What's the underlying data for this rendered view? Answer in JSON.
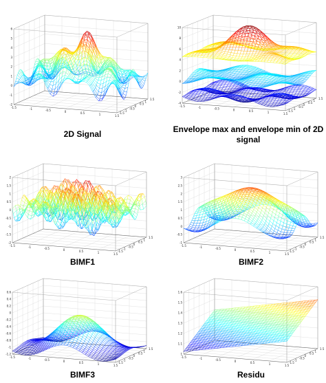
{
  "figure": {
    "panels": [
      {
        "caption": "2D Signal"
      },
      {
        "caption": "Envelope max and envelope min of 2D signal"
      },
      {
        "caption": "BIMF1"
      },
      {
        "caption": "BIMF2"
      },
      {
        "caption": "BIMF3"
      },
      {
        "caption": "Residu"
      }
    ]
  },
  "chart_data": [
    {
      "type": "surface",
      "title": "2D Signal",
      "x": [
        -1.5,
        1.5
      ],
      "y": [
        -1.5,
        1.5
      ],
      "zlim": [
        -2,
        6
      ],
      "z_ticks": [
        -2,
        -1,
        0,
        1,
        2,
        3,
        4,
        5,
        6
      ],
      "xy_ticks": [
        -1.5,
        -1,
        -0.5,
        0,
        0.5,
        1,
        1.5
      ],
      "colormap": "jet",
      "grid": true
    },
    {
      "type": "surface",
      "title": "Envelope max and envelope min of 2D signal",
      "x": [
        -1.5,
        1.5
      ],
      "y": [
        -1.5,
        1.5
      ],
      "zlim": [
        -4,
        10
      ],
      "z_ticks": [
        -4,
        -2,
        0,
        2,
        4,
        6,
        8,
        10
      ],
      "xy_ticks": [
        -1.5,
        -1,
        -0.5,
        0,
        0.5,
        1,
        1.5
      ],
      "colormap": "jet",
      "grid": true
    },
    {
      "type": "surface",
      "title": "BIMF1",
      "x": [
        -1.5,
        1.5
      ],
      "y": [
        -1.5,
        1.5
      ],
      "zlim": [
        -2,
        2
      ],
      "z_ticks": [
        -2,
        -1.5,
        -1,
        -0.5,
        0,
        0.5,
        1,
        1.5,
        2
      ],
      "xy_ticks": [
        -1.5,
        -1,
        -0.5,
        0,
        0.5,
        1,
        1.5
      ],
      "colormap": "jet",
      "grid": true
    },
    {
      "type": "surface",
      "title": "BIMF2",
      "x": [
        -1.5,
        1.5
      ],
      "y": [
        -1.5,
        1.5
      ],
      "zlim": [
        -1,
        3
      ],
      "z_ticks": [
        -1,
        -0.5,
        0,
        0.5,
        1,
        1.5,
        2,
        2.5,
        3
      ],
      "xy_ticks": [
        -1.5,
        -1,
        -0.5,
        0,
        0.5,
        1,
        1.5
      ],
      "colormap": "jet",
      "grid": true
    },
    {
      "type": "surface",
      "title": "BIMF3",
      "x": [
        -1.5,
        1.5
      ],
      "y": [
        -1.5,
        1.5
      ],
      "zlim": [
        -1.2,
        0.6
      ],
      "z_ticks": [
        -1.2,
        -1,
        -0.8,
        -0.6,
        -0.4,
        -0.2,
        0,
        0.2,
        0.4,
        0.6
      ],
      "xy_ticks": [
        -1.5,
        -1,
        -0.5,
        0,
        0.5,
        1,
        1.5
      ],
      "colormap": "jet",
      "grid": true
    },
    {
      "type": "surface",
      "title": "Residu",
      "x": [
        -1.5,
        1.5
      ],
      "y": [
        -1.5,
        1.5
      ],
      "zlim": [
        1,
        1.6
      ],
      "z_ticks": [
        1,
        1.1,
        1.2,
        1.3,
        1.4,
        1.5,
        1.6
      ],
      "xy_ticks": [
        -1.5,
        -1,
        -0.5,
        0,
        0.5,
        1,
        1.5
      ],
      "colormap": "jet",
      "grid": true
    }
  ]
}
